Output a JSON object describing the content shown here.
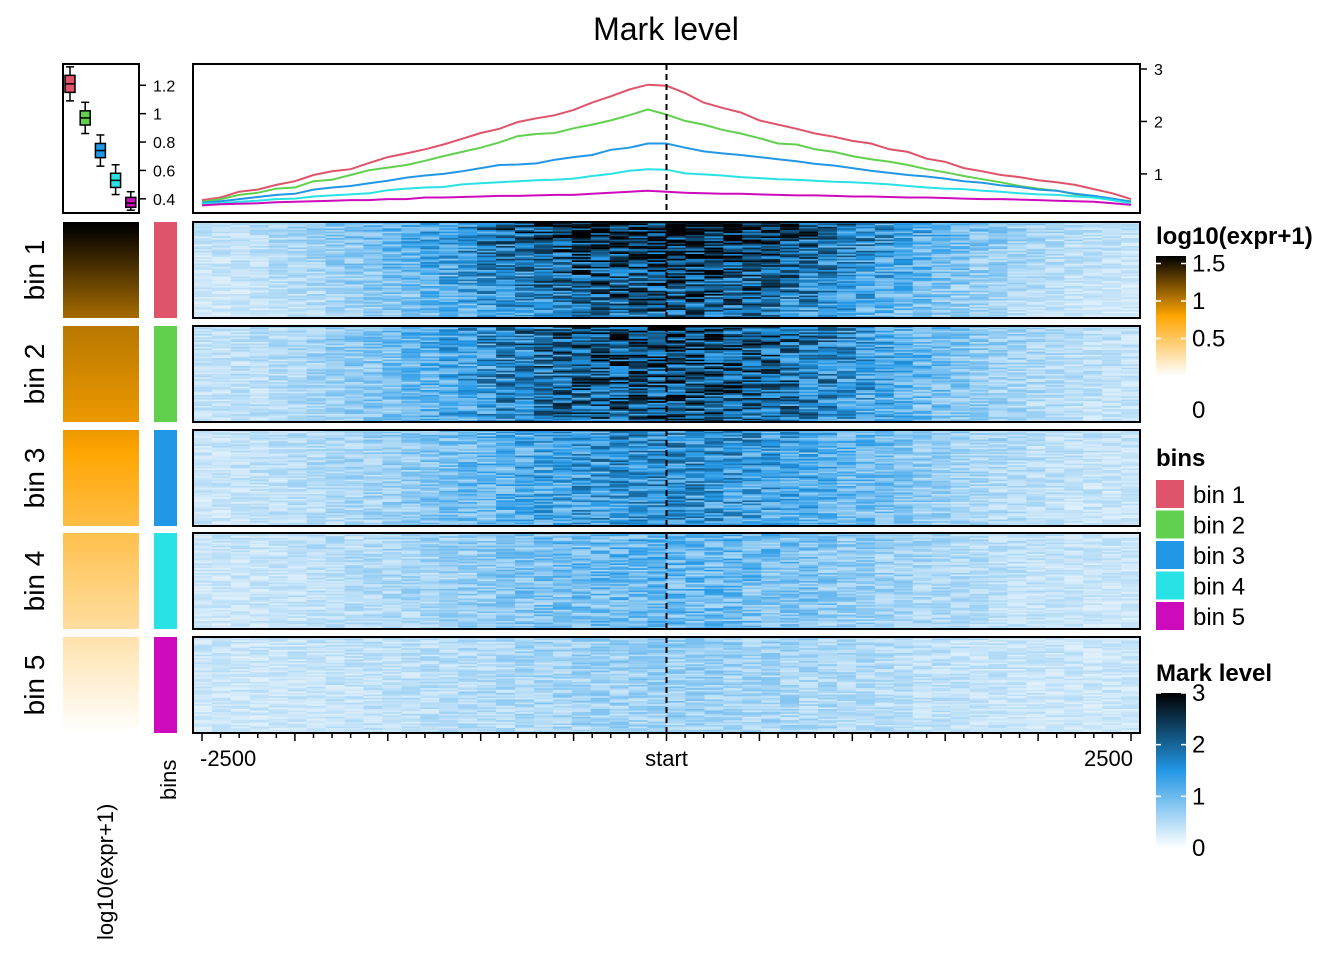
{
  "chart_data": {
    "type": "heatmap",
    "title": "Mark level",
    "x": {
      "min": -2500,
      "max": 2500,
      "tick_values": [
        -2500,
        0,
        2500
      ],
      "tick_labels": [
        "-2500",
        "start",
        "2500"
      ]
    },
    "profile": {
      "ylim": [
        0.35,
        3.0
      ],
      "y_ticks": [
        1,
        2,
        3
      ],
      "x": [
        -2500,
        -2400,
        -2300,
        -2200,
        -2100,
        -2000,
        -1900,
        -1800,
        -1700,
        -1600,
        -1500,
        -1400,
        -1300,
        -1200,
        -1100,
        -1000,
        -900,
        -800,
        -700,
        -600,
        -500,
        -400,
        -300,
        -200,
        -100,
        0,
        100,
        200,
        300,
        400,
        500,
        600,
        700,
        800,
        900,
        1000,
        1100,
        1200,
        1300,
        1400,
        1500,
        1600,
        1700,
        1800,
        1900,
        2000,
        2100,
        2200,
        2300,
        2400,
        2500
      ],
      "series": [
        {
          "name": "bin 1",
          "color": "#DF536B",
          "values": [
            0.5,
            0.55,
            0.66,
            0.7,
            0.79,
            0.86,
            0.98,
            1.05,
            1.09,
            1.21,
            1.32,
            1.39,
            1.47,
            1.56,
            1.67,
            1.78,
            1.86,
            1.99,
            2.06,
            2.12,
            2.22,
            2.36,
            2.48,
            2.61,
            2.7,
            2.68,
            2.54,
            2.36,
            2.26,
            2.17,
            2.02,
            1.94,
            1.86,
            1.77,
            1.71,
            1.63,
            1.58,
            1.47,
            1.42,
            1.29,
            1.23,
            1.11,
            1.05,
            0.98,
            0.94,
            0.88,
            0.84,
            0.79,
            0.71,
            0.63,
            0.52
          ]
        },
        {
          "name": "bin 2",
          "color": "#61D04F",
          "values": [
            0.47,
            0.52,
            0.6,
            0.64,
            0.72,
            0.74,
            0.86,
            0.89,
            0.98,
            1.07,
            1.12,
            1.17,
            1.25,
            1.34,
            1.42,
            1.5,
            1.6,
            1.72,
            1.76,
            1.78,
            1.87,
            1.94,
            2.02,
            2.12,
            2.23,
            2.13,
            2.01,
            1.94,
            1.84,
            1.77,
            1.68,
            1.58,
            1.56,
            1.47,
            1.42,
            1.34,
            1.28,
            1.23,
            1.17,
            1.09,
            1.03,
            0.96,
            0.9,
            0.84,
            0.77,
            0.72,
            0.68,
            0.61,
            0.58,
            0.52,
            0.48
          ]
        },
        {
          "name": "bin 3",
          "color": "#2297E6",
          "values": [
            0.45,
            0.48,
            0.52,
            0.56,
            0.6,
            0.62,
            0.7,
            0.74,
            0.77,
            0.82,
            0.87,
            0.93,
            0.97,
            1.0,
            1.05,
            1.11,
            1.17,
            1.18,
            1.2,
            1.27,
            1.32,
            1.36,
            1.46,
            1.5,
            1.58,
            1.58,
            1.5,
            1.43,
            1.39,
            1.36,
            1.32,
            1.28,
            1.24,
            1.19,
            1.16,
            1.11,
            1.06,
            1.02,
            0.98,
            0.95,
            0.91,
            0.86,
            0.83,
            0.78,
            0.75,
            0.7,
            0.68,
            0.62,
            0.58,
            0.53,
            0.47
          ]
        },
        {
          "name": "bin 4",
          "color": "#28E2E5",
          "values": [
            0.43,
            0.44,
            0.47,
            0.49,
            0.52,
            0.53,
            0.57,
            0.59,
            0.61,
            0.63,
            0.69,
            0.72,
            0.74,
            0.75,
            0.8,
            0.82,
            0.84,
            0.86,
            0.88,
            0.89,
            0.91,
            0.96,
            1.0,
            1.06,
            1.09,
            1.08,
            1.01,
            0.99,
            0.97,
            0.94,
            0.92,
            0.9,
            0.89,
            0.87,
            0.85,
            0.84,
            0.82,
            0.8,
            0.77,
            0.74,
            0.72,
            0.71,
            0.68,
            0.66,
            0.63,
            0.61,
            0.6,
            0.57,
            0.55,
            0.5,
            0.44
          ]
        },
        {
          "name": "bin 5",
          "color": "#CD0BBC",
          "values": [
            0.4,
            0.42,
            0.43,
            0.44,
            0.46,
            0.47,
            0.48,
            0.49,
            0.5,
            0.5,
            0.52,
            0.52,
            0.55,
            0.55,
            0.56,
            0.57,
            0.58,
            0.58,
            0.59,
            0.6,
            0.6,
            0.62,
            0.64,
            0.66,
            0.68,
            0.66,
            0.64,
            0.63,
            0.62,
            0.62,
            0.61,
            0.6,
            0.59,
            0.59,
            0.58,
            0.57,
            0.57,
            0.56,
            0.55,
            0.55,
            0.54,
            0.53,
            0.52,
            0.52,
            0.51,
            0.5,
            0.49,
            0.48,
            0.47,
            0.44,
            0.41
          ]
        }
      ]
    },
    "heatmap": {
      "color_scale": {
        "name": "Mark level",
        "min": 0,
        "max": 3,
        "ticks": [
          0,
          1,
          2,
          3
        ],
        "colors": [
          "#FFFFFF",
          "#2297E6",
          "#000000"
        ]
      },
      "n_columns": 50,
      "rows_per_bin": 60,
      "bin_peak_levels": [
        2.9,
        2.4,
        1.6,
        1.1,
        0.7
      ]
    },
    "bins": {
      "name": "bins",
      "labels": [
        "bin 1",
        "bin 2",
        "bin 3",
        "bin 4",
        "bin 5"
      ],
      "colors": [
        "#DF536B",
        "#61D04F",
        "#2297E6",
        "#28E2E5",
        "#CD0BBC"
      ]
    },
    "expression": {
      "name": "log10(expr+1)",
      "ticks": [
        0,
        0.5,
        1,
        1.5
      ],
      "tick_labels": [
        "0",
        "0.5",
        "1",
        "1.5"
      ],
      "colors": [
        "#FFFFFF",
        "#FFA500",
        "#000000"
      ],
      "bin_ranges": [
        [
          1.62,
          1.08
        ],
        [
          1.02,
          0.86
        ],
        [
          0.86,
          0.58
        ],
        [
          0.56,
          0.3
        ],
        [
          0.26,
          0.0
        ]
      ]
    },
    "boxplot": {
      "ylim": [
        0.3,
        1.35
      ],
      "y_ticks": [
        0.4,
        0.6,
        0.8,
        1.0,
        1.2
      ],
      "y_tick_labels": [
        "0.4",
        "0.6",
        "0.8",
        "1",
        "1.2"
      ],
      "boxes": [
        {
          "bin": "bin 1",
          "min": 1.09,
          "q1": 1.15,
          "median": 1.21,
          "q3": 1.27,
          "max": 1.33
        },
        {
          "bin": "bin 2",
          "min": 0.86,
          "q1": 0.92,
          "median": 0.97,
          "q3": 1.02,
          "max": 1.08
        },
        {
          "bin": "bin 3",
          "min": 0.63,
          "q1": 0.69,
          "median": 0.74,
          "q3": 0.79,
          "max": 0.85
        },
        {
          "bin": "bin 4",
          "min": 0.43,
          "q1": 0.48,
          "median": 0.53,
          "q3": 0.58,
          "max": 0.64
        },
        {
          "bin": "bin 5",
          "min": 0.32,
          "q1": 0.34,
          "median": 0.37,
          "q3": 0.41,
          "max": 0.45
        }
      ]
    }
  }
}
